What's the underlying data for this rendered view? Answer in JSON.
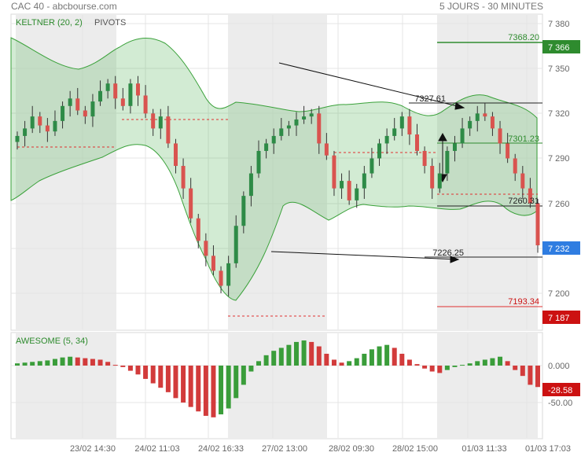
{
  "header": {
    "left": "CAC 40 - abcbourse.com",
    "right": "5 JOURS - 30 MINUTES"
  },
  "main_panel": {
    "legend_keltner": "KELTNER (20, 2)",
    "legend_pivots": "PIVOTS",
    "y_ticks": [
      "7 380",
      "7 350",
      "7 320",
      "7 290",
      "7 260",
      "7 200"
    ],
    "price_badges": [
      {
        "text": "7 366",
        "color": "#2e8b2e"
      },
      {
        "text": "7 232",
        "color": "#2f7de1"
      },
      {
        "text": "7 187",
        "color": "#cc1111"
      }
    ]
  },
  "level_labels": [
    {
      "text": "7368.20",
      "color": "#2e8b2e"
    },
    {
      "text": "7327.61",
      "color": "#222222"
    },
    {
      "text": "7301.23",
      "color": "#2e8b2e"
    },
    {
      "text": "7260.31",
      "color": "#222222"
    },
    {
      "text": "7226.25",
      "color": "#222222"
    },
    {
      "text": "7193.34",
      "color": "#cc1111"
    }
  ],
  "osc_panel": {
    "legend": "AWESOME (5, 34)",
    "y_ticks": [
      "0.000",
      "-50.00"
    ],
    "badge": {
      "text": "-28.58",
      "color": "#cc1111"
    }
  },
  "x_labels": [
    "23/02 14:30",
    "24/02 11:03",
    "24/02 16:33",
    "27/02 13:00",
    "28/02 09:30",
    "28/02 15:00",
    "01/03 11:33",
    "01/03 17:03"
  ],
  "chart_data": [
    {
      "type": "candlestick",
      "title": "CAC 40",
      "series": [
        {
          "name": "KELTNER (20, 2)",
          "type": "band"
        },
        {
          "name": "PIVOTS",
          "type": "levels",
          "values": [
            7368.2,
            7327.61,
            7301.23,
            7260.31,
            7226.25,
            7193.34
          ]
        }
      ],
      "close": [
        7305,
        7310,
        7318,
        7312,
        7308,
        7315,
        7325,
        7330,
        7322,
        7318,
        7328,
        7335,
        7340,
        7330,
        7325,
        7340,
        7332,
        7320,
        7310,
        7318,
        7300,
        7285,
        7270,
        7250,
        7235,
        7225,
        7215,
        7205,
        7220,
        7245,
        7265,
        7280,
        7295,
        7300,
        7305,
        7310,
        7312,
        7316,
        7318,
        7320,
        7300,
        7292,
        7270,
        7275,
        7262,
        7270,
        7280,
        7290,
        7300,
        7305,
        7310,
        7318,
        7306,
        7295,
        7285,
        7270,
        7280,
        7295,
        7300,
        7310,
        7315,
        7320,
        7318,
        7310,
        7300,
        7290,
        7280,
        7270,
        7260,
        7232
      ],
      "current_price": 7232,
      "ylim": [
        7180,
        7390
      ],
      "y_ticks": [
        7380,
        7350,
        7320,
        7290,
        7260,
        7200
      ],
      "x_labels": [
        "23/02 14:30",
        "24/02 11:03",
        "24/02 16:33",
        "27/02 13:00",
        "28/02 09:30",
        "28/02 15:00",
        "01/03 11:33",
        "01/03 17:03"
      ]
    },
    {
      "type": "bar",
      "title": "AWESOME (5, 34)",
      "values": [
        3,
        4,
        5,
        6,
        7,
        9,
        11,
        12,
        11,
        10,
        9,
        8,
        5,
        1,
        -2,
        -7,
        -12,
        -18,
        -24,
        -30,
        -36,
        -44,
        -50,
        -56,
        -62,
        -68,
        -70,
        -66,
        -58,
        -44,
        -26,
        -8,
        6,
        14,
        20,
        24,
        28,
        32,
        34,
        32,
        26,
        16,
        8,
        4,
        6,
        10,
        16,
        22,
        26,
        28,
        24,
        16,
        8,
        2,
        -4,
        -8,
        -10,
        -6,
        -2,
        1,
        3,
        6,
        8,
        10,
        12,
        6,
        -6,
        -14,
        -26,
        -29
      ],
      "last_value": -28.58,
      "y_ticks": [
        0,
        -50
      ],
      "ylim": [
        -95,
        45
      ]
    }
  ]
}
